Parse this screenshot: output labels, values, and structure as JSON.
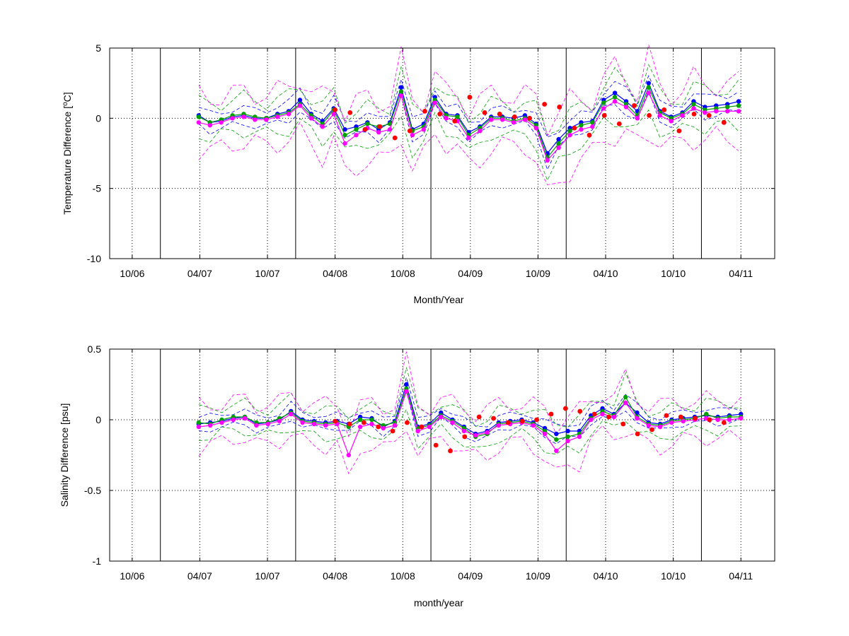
{
  "colors": {
    "blue": "#0000ff",
    "green": "#00a000",
    "magenta": "#ff00ff",
    "red": "#ff0000",
    "black": "#000000"
  },
  "chart_data": [
    {
      "type": "line",
      "title": "",
      "xlabel": "Month/Year",
      "ylabel": "Temperature Difference [°C]",
      "ylabel_parts": [
        "Temperature Difference [",
        "o",
        "C]"
      ],
      "xlim": [
        -1,
        58
      ],
      "ylim": [
        -10,
        5
      ],
      "x_unit": "months since 09/06",
      "xtick_values": [
        1,
        7,
        13,
        19,
        25,
        31,
        37,
        43,
        49,
        55
      ],
      "xtick_labels": [
        "10/06",
        "04/07",
        "10/07",
        "04/08",
        "10/08",
        "04/09",
        "10/09",
        "04/10",
        "10/10",
        "04/11"
      ],
      "ytick_values": [
        5,
        0,
        -5,
        -10
      ],
      "ytick_labels": [
        "5",
        "0",
        "-5",
        "-10"
      ],
      "year_boundaries": [
        3.5,
        15.5,
        27.5,
        39.5,
        51.5
      ],
      "grid": "dotted",
      "series": [
        {
          "color": "blue",
          "style": "line-dots",
          "values": [
            0.2,
            -0.3,
            -0.2,
            0.1,
            0.2,
            0.0,
            0.0,
            0.3,
            0.5,
            1.3,
            0.3,
            -0.2,
            0.7,
            -0.8,
            -0.6,
            -0.3,
            -0.8,
            -0.3,
            2.2,
            -0.8,
            -0.4,
            1.5,
            0.3,
            0.2,
            -1.0,
            -0.6,
            0.1,
            0.1,
            0.0,
            0.2,
            -0.4,
            -2.5,
            -1.5,
            -0.7,
            -0.3,
            -0.2,
            1.3,
            1.8,
            1.2,
            0.5,
            2.5,
            0.5,
            0.1,
            0.4,
            1.2,
            0.8,
            0.9,
            1.0,
            1.2
          ]
        },
        {
          "color": "green",
          "style": "line-dots",
          "values": [
            0.1,
            -0.3,
            -0.1,
            0.2,
            0.3,
            0.1,
            0.0,
            0.2,
            0.4,
            1.0,
            0.2,
            -0.4,
            0.6,
            -1.2,
            -0.8,
            -0.4,
            -0.6,
            -0.4,
            1.9,
            -0.9,
            -0.6,
            1.3,
            0.2,
            0.1,
            -1.2,
            -0.7,
            0.0,
            0.0,
            -0.2,
            0.0,
            -0.5,
            -2.8,
            -1.8,
            -0.9,
            -0.5,
            -0.3,
            1.1,
            1.5,
            1.0,
            0.2,
            2.2,
            0.4,
            0.0,
            0.3,
            1.0,
            0.6,
            0.7,
            0.8,
            0.9
          ]
        },
        {
          "color": "magenta",
          "style": "line-dots",
          "values": [
            -0.3,
            -0.5,
            -0.3,
            0.0,
            0.1,
            -0.1,
            -0.1,
            0.1,
            0.3,
            0.9,
            0.0,
            -0.6,
            0.3,
            -1.8,
            -1.2,
            -0.7,
            -1.0,
            -0.8,
            1.6,
            -1.2,
            -0.8,
            1.1,
            0.0,
            -0.2,
            -1.4,
            -0.9,
            -0.1,
            -0.1,
            -0.3,
            -0.1,
            -0.7,
            -3.0,
            -2.1,
            -1.2,
            -0.8,
            -0.6,
            0.7,
            1.2,
            0.8,
            0.0,
            1.8,
            0.2,
            -0.2,
            0.2,
            0.7,
            0.4,
            0.5,
            0.5,
            0.5
          ]
        },
        {
          "color": "red",
          "style": "markers",
          "values": [
            0.6,
            0.4,
            -0.8,
            -0.6,
            -1.4,
            -0.9,
            0.5,
            0.3,
            -0.2,
            1.5,
            0.4,
            0.3,
            0.1,
            0.0,
            1.0,
            0.8,
            -0.7,
            -1.2,
            0.2,
            -0.4,
            0.9,
            0.2,
            0.6,
            -0.9,
            0.3,
            0.2,
            -0.3
          ]
        }
      ]
    },
    {
      "type": "line",
      "title": "",
      "xlabel": "month/year",
      "ylabel": "Salinity Difference [psu]",
      "xlim": [
        -1,
        58
      ],
      "ylim": [
        -1,
        0.5
      ],
      "x_unit": "months since 09/06",
      "xtick_values": [
        1,
        7,
        13,
        19,
        25,
        31,
        37,
        43,
        49,
        55
      ],
      "xtick_labels": [
        "10/06",
        "04/07",
        "10/07",
        "04/08",
        "10/08",
        "04/09",
        "10/09",
        "04/10",
        "10/10",
        "04/11"
      ],
      "ytick_values": [
        0.5,
        0,
        -0.5,
        -1
      ],
      "ytick_labels": [
        "0.5",
        "0",
        "-0.5",
        "-1"
      ],
      "year_boundaries": [
        3.5,
        15.5,
        27.5,
        39.5,
        51.5
      ],
      "grid": "dotted",
      "series": [
        {
          "color": "blue",
          "style": "line-dots",
          "values": [
            -0.03,
            -0.02,
            -0.01,
            0.01,
            0.02,
            -0.03,
            -0.02,
            0.0,
            0.06,
            0.0,
            -0.01,
            -0.02,
            -0.01,
            -0.03,
            0.02,
            0.01,
            -0.05,
            -0.01,
            0.25,
            -0.05,
            -0.03,
            0.05,
            0.0,
            -0.05,
            -0.1,
            -0.08,
            -0.02,
            -0.01,
            0.0,
            -0.02,
            -0.06,
            -0.1,
            -0.08,
            -0.08,
            0.03,
            0.08,
            0.04,
            0.12,
            0.05,
            -0.02,
            -0.03,
            0.0,
            0.01,
            0.02,
            0.03,
            0.02,
            0.03,
            0.04
          ]
        },
        {
          "color": "green",
          "style": "line-dots",
          "values": [
            -0.02,
            -0.03,
            0.0,
            0.02,
            0.02,
            -0.02,
            -0.02,
            0.01,
            0.05,
            -0.01,
            -0.02,
            -0.03,
            -0.02,
            -0.05,
            0.0,
            0.0,
            -0.04,
            -0.02,
            0.22,
            -0.06,
            -0.04,
            0.03,
            -0.01,
            -0.06,
            -0.12,
            -0.1,
            -0.03,
            -0.02,
            -0.01,
            -0.03,
            -0.08,
            -0.14,
            -0.12,
            -0.1,
            0.01,
            0.06,
            0.03,
            0.16,
            0.02,
            -0.03,
            -0.04,
            -0.01,
            0.0,
            0.01,
            0.04,
            0.01,
            0.02,
            0.02
          ]
        },
        {
          "color": "magenta",
          "style": "line-dots",
          "values": [
            -0.05,
            -0.04,
            -0.02,
            0.0,
            0.01,
            -0.04,
            -0.03,
            -0.01,
            0.04,
            -0.02,
            -0.03,
            -0.04,
            -0.03,
            -0.25,
            -0.05,
            -0.03,
            -0.06,
            -0.04,
            0.2,
            -0.08,
            -0.05,
            0.02,
            -0.02,
            -0.08,
            -0.11,
            -0.09,
            -0.04,
            -0.03,
            -0.02,
            -0.04,
            -0.1,
            -0.22,
            -0.15,
            -0.12,
            0.0,
            0.04,
            0.02,
            0.12,
            0.01,
            -0.04,
            -0.05,
            -0.02,
            -0.01,
            0.0,
            0.01,
            0.0,
            0.0,
            0.01
          ]
        },
        {
          "color": "red",
          "style": "markers",
          "values": [
            -0.01,
            -0.03,
            -0.02,
            -0.05,
            -0.08,
            -0.02,
            -0.05,
            -0.18,
            -0.22,
            -0.12,
            0.02,
            0.01,
            -0.02,
            -0.01,
            0.0,
            0.04,
            0.08,
            0.06,
            0.04,
            0.02,
            -0.03,
            -0.1,
            -0.07,
            0.03,
            0.02,
            0.01,
            0.0,
            -0.02
          ]
        }
      ]
    }
  ]
}
